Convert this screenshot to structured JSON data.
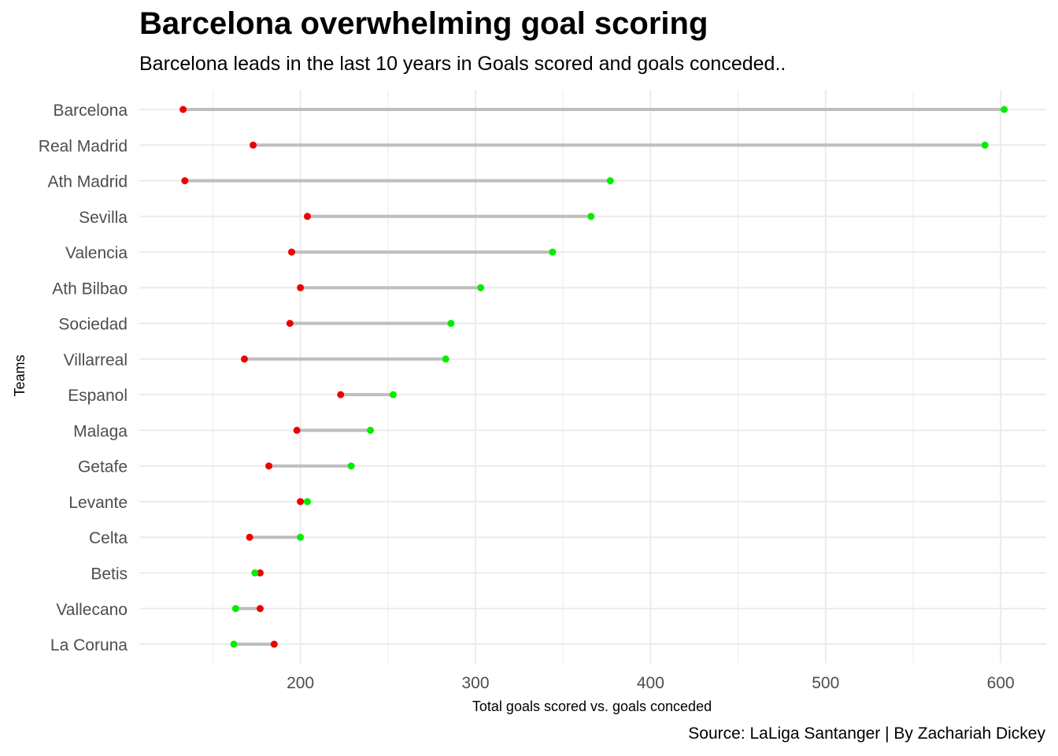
{
  "title": "Barcelona overwhelming goal scoring",
  "subtitle": "Barcelona leads in the last 10 years in Goals scored and goals conceded..",
  "caption": "Source: LaLiga Santanger | By Zachariah Dickey",
  "colors": {
    "scored": "#00ee00",
    "conceded": "#ee0000",
    "segment": "#bebebe",
    "grid": "#ebebeb"
  },
  "chart_data": {
    "type": "dumbbell",
    "title": "Barcelona overwhelming goal scoring",
    "subtitle": "Barcelona leads in the last 10 years in Goals scored and goals conceded..",
    "xlabel": "Total goals scored vs. goals conceded",
    "ylabel": "Teams",
    "xlim": [
      108,
      626
    ],
    "xticks": [
      200,
      300,
      400,
      500,
      600
    ],
    "grid": true,
    "categories": [
      "Barcelona",
      "Real Madrid",
      "Ath Madrid",
      "Sevilla",
      "Valencia",
      "Ath Bilbao",
      "Sociedad",
      "Villarreal",
      "Espanol",
      "Malaga",
      "Getafe",
      "Levante",
      "Celta",
      "Betis",
      "Vallecano",
      "La Coruna"
    ],
    "series": [
      {
        "name": "Goals scored",
        "color": "green",
        "values": [
          602,
          591,
          377,
          366,
          344,
          303,
          286,
          283,
          253,
          240,
          229,
          204,
          200,
          174,
          163,
          162
        ]
      },
      {
        "name": "Goals conceded",
        "color": "red",
        "values": [
          133,
          173,
          134,
          204,
          195,
          200,
          194,
          168,
          223,
          198,
          182,
          200,
          171,
          177,
          177,
          185
        ]
      }
    ]
  }
}
